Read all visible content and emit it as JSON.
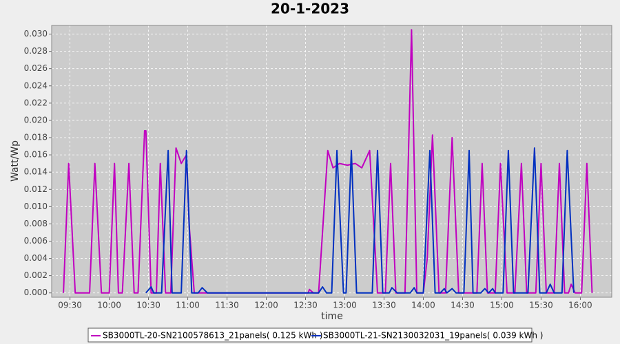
{
  "chart_data": {
    "type": "line",
    "title": "20-1-2023",
    "x_label": "time",
    "y_label": "Watt/Wp",
    "xlim": [
      "09:16",
      "16:24"
    ],
    "xticks": [
      "09:30",
      "10:00",
      "10:30",
      "11:00",
      "11:30",
      "12:00",
      "12:30",
      "13:00",
      "13:30",
      "14:00",
      "14:30",
      "15:00",
      "15:30",
      "16:00"
    ],
    "ylim": [
      -0.0005,
      0.031
    ],
    "yticks": [
      {
        "value": 0,
        "label": "0.000"
      },
      {
        "value": 0.002,
        "label": "0.002"
      },
      {
        "value": 0.004,
        "label": "0.004"
      },
      {
        "value": 0.006,
        "label": "0.006"
      },
      {
        "value": 0.008,
        "label": "0.008"
      },
      {
        "value": 0.01,
        "label": "0.010"
      },
      {
        "value": 0.012,
        "label": "0.012"
      },
      {
        "value": 0.014,
        "label": "0.014"
      },
      {
        "value": 0.016,
        "label": "0.016"
      },
      {
        "value": 0.018,
        "label": "0.018"
      },
      {
        "value": 0.02,
        "label": "0.020"
      },
      {
        "value": 0.022,
        "label": "0.022"
      },
      {
        "value": 0.024,
        "label": "0.024"
      },
      {
        "value": 0.026,
        "label": "0.026"
      },
      {
        "value": 0.028,
        "label": "0.028"
      },
      {
        "value": 0.03,
        "label": "0.030"
      }
    ],
    "grid": true,
    "series": [
      {
        "name": "SB3000TL-20-SN2100578613_21panels( 0.125 kWh )",
        "color": "#c000c0",
        "x": [
          "09:25",
          "09:29",
          "09:34",
          "09:45",
          "09:49",
          "09:54",
          "10:00",
          "10:04",
          "10:07",
          "10:10",
          "10:15",
          "10:19",
          "10:22",
          "10:27",
          "10:28",
          "10:32",
          "10:36",
          "10:39",
          "10:43",
          "10:47",
          "10:51",
          "10:55",
          "10:57",
          "10:59",
          "11:01",
          "11:05",
          "11:15",
          "12:32",
          "12:33",
          "12:36",
          "12:40",
          "12:47",
          "12:51",
          "12:56",
          "13:02",
          "13:08",
          "13:13",
          "13:19",
          "13:25",
          "13:31",
          "13:35",
          "13:39",
          "13:46",
          "13:51",
          "13:55",
          "14:00",
          "14:03",
          "14:07",
          "14:12",
          "14:17",
          "14:22",
          "14:27",
          "14:41",
          "14:45",
          "14:49",
          "14:55",
          "14:59",
          "15:04",
          "15:10",
          "15:15",
          "15:19",
          "15:26",
          "15:30",
          "15:34",
          "15:40",
          "15:44",
          "15:48",
          "15:51",
          "15:53",
          "15:56",
          "16:01",
          "16:05",
          "16:09"
        ],
        "values": [
          0,
          0.015,
          0,
          0,
          0.015,
          0,
          0,
          0.015,
          0,
          0,
          0.015,
          0,
          0,
          0.0188,
          0.0188,
          0,
          0,
          0.015,
          0,
          0,
          0.0168,
          0.015,
          0.0155,
          0.016,
          0.008,
          0,
          0,
          0,
          0.0004,
          0,
          0,
          0.0165,
          0.0145,
          0.015,
          0.0148,
          0.015,
          0.0145,
          0.0165,
          0,
          0,
          0.015,
          0,
          0,
          0.0305,
          0,
          0,
          0.004,
          0.0183,
          0,
          0,
          0.018,
          0,
          0,
          0.015,
          0,
          0,
          0.015,
          0,
          0,
          0.015,
          0,
          0,
          0.015,
          0,
          0,
          0.015,
          0,
          0,
          0.001,
          0,
          0,
          0.015,
          0
        ]
      },
      {
        "name": "SB3000TL-21-SN2130032031_19panels( 0.039 kWh )",
        "color": "#0030c0",
        "x": [
          "10:28",
          "10:32",
          "10:34",
          "10:40",
          "10:45",
          "10:48",
          "10:55",
          "10:59",
          "11:03",
          "11:08",
          "11:11",
          "11:15",
          "12:36",
          "12:40",
          "12:43",
          "12:46",
          "12:50",
          "12:54",
          "12:59",
          "13:01",
          "13:05",
          "13:09",
          "13:21",
          "13:25",
          "13:29",
          "13:34",
          "13:36",
          "13:40",
          "13:50",
          "13:53",
          "13:55",
          "14:00",
          "14:05",
          "14:09",
          "14:13",
          "14:16",
          "14:18",
          "14:22",
          "14:25",
          "14:31",
          "14:35",
          "14:38",
          "14:44",
          "14:47",
          "14:50",
          "14:53",
          "14:55",
          "15:01",
          "15:05",
          "15:09",
          "15:20",
          "15:25",
          "15:29",
          "15:34",
          "15:37",
          "15:40",
          "15:46",
          "15:50",
          "15:55"
        ],
        "values": [
          0,
          0.0007,
          0,
          0,
          0.0165,
          0,
          0,
          0.0165,
          0,
          0,
          0.0006,
          0,
          0,
          0,
          0.0007,
          0,
          0,
          0.0165,
          0,
          0,
          0.0165,
          0,
          0,
          0.0165,
          0,
          0,
          0.0006,
          0,
          0,
          0.0006,
          0,
          0,
          0.0165,
          0,
          0,
          0.0005,
          0,
          0.0005,
          0,
          0,
          0.0165,
          0,
          0,
          0.0005,
          0,
          0.0005,
          0,
          0,
          0.0165,
          0,
          0,
          0.0168,
          0,
          0,
          0.001,
          0,
          0,
          0.0165,
          0
        ]
      }
    ]
  }
}
